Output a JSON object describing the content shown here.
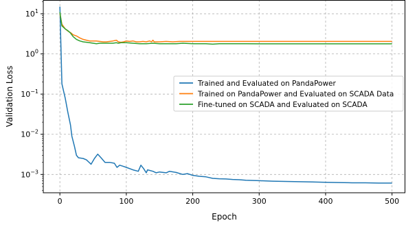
{
  "chart_data": {
    "type": "line",
    "xlabel": "Epoch",
    "ylabel": "Validation Loss",
    "xlim": [
      -25,
      520
    ],
    "ylim": [
      0.00035,
      22
    ],
    "yscale": "log",
    "grid": true,
    "legend_position": "center-right",
    "x_ticks": [
      0,
      100,
      200,
      300,
      400,
      500
    ],
    "x_tick_labels": [
      "0",
      "100",
      "200",
      "300",
      "400",
      "500"
    ],
    "y_ticks": [
      10,
      1,
      0.1,
      0.01,
      0.001
    ],
    "y_tick_labels": [
      {
        "base": "10",
        "exp": "1"
      },
      {
        "base": "10",
        "exp": "0"
      },
      {
        "base": "10",
        "exp": "−1"
      },
      {
        "base": "10",
        "exp": "−2"
      },
      {
        "base": "10",
        "exp": "−3"
      }
    ],
    "series": [
      {
        "name": "Trained and Evaluated on PandaPower",
        "color": "#1f77b4",
        "points": [
          [
            0,
            15
          ],
          [
            3,
            0.18
          ],
          [
            8,
            0.08
          ],
          [
            12,
            0.035
          ],
          [
            16,
            0.017
          ],
          [
            18,
            0.009
          ],
          [
            22,
            0.005
          ],
          [
            25,
            0.003
          ],
          [
            28,
            0.0026
          ],
          [
            35,
            0.0025
          ],
          [
            40,
            0.0023
          ],
          [
            47,
            0.0018
          ],
          [
            52,
            0.0025
          ],
          [
            57,
            0.0032
          ],
          [
            62,
            0.0026
          ],
          [
            68,
            0.002
          ],
          [
            75,
            0.002
          ],
          [
            82,
            0.0019
          ],
          [
            86,
            0.0015
          ],
          [
            90,
            0.0017
          ],
          [
            95,
            0.0016
          ],
          [
            100,
            0.0015
          ],
          [
            110,
            0.0013
          ],
          [
            118,
            0.0012
          ],
          [
            122,
            0.0017
          ],
          [
            126,
            0.0014
          ],
          [
            130,
            0.0011
          ],
          [
            132,
            0.0013
          ],
          [
            140,
            0.0012
          ],
          [
            145,
            0.0011
          ],
          [
            150,
            0.00115
          ],
          [
            160,
            0.0011
          ],
          [
            165,
            0.0012
          ],
          [
            175,
            0.00112
          ],
          [
            185,
            0.001
          ],
          [
            192,
            0.00105
          ],
          [
            200,
            0.00095
          ],
          [
            210,
            0.0009
          ],
          [
            220,
            0.00087
          ],
          [
            230,
            0.0008
          ],
          [
            240,
            0.00078
          ],
          [
            250,
            0.00077
          ],
          [
            260,
            0.00075
          ],
          [
            270,
            0.00074
          ],
          [
            280,
            0.00072
          ],
          [
            300,
            0.0007
          ],
          [
            320,
            0.00068
          ],
          [
            340,
            0.00067
          ],
          [
            360,
            0.00066
          ],
          [
            380,
            0.00065
          ],
          [
            400,
            0.00064
          ],
          [
            420,
            0.00063
          ],
          [
            440,
            0.00062
          ],
          [
            460,
            0.00062
          ],
          [
            480,
            0.00061
          ],
          [
            500,
            0.00061
          ]
        ]
      },
      {
        "name": "Trained on PandaPower and Evaluated on SCADA Data",
        "color": "#ff7f0e",
        "points": [
          [
            0,
            10
          ],
          [
            3,
            5.5
          ],
          [
            8,
            4.2
          ],
          [
            12,
            3.7
          ],
          [
            16,
            3.4
          ],
          [
            20,
            3.0
          ],
          [
            25,
            2.8
          ],
          [
            30,
            2.5
          ],
          [
            35,
            2.3
          ],
          [
            40,
            2.2
          ],
          [
            45,
            2.1
          ],
          [
            50,
            2.1
          ],
          [
            55,
            2.1
          ],
          [
            60,
            2.05
          ],
          [
            65,
            2.0
          ],
          [
            70,
            2.0
          ],
          [
            75,
            2.05
          ],
          [
            80,
            2.1
          ],
          [
            85,
            2.2
          ],
          [
            88,
            2.0
          ],
          [
            92,
            1.95
          ],
          [
            96,
            2.0
          ],
          [
            100,
            2.1
          ],
          [
            105,
            2.05
          ],
          [
            110,
            2.1
          ],
          [
            115,
            2.0
          ],
          [
            120,
            2.0
          ],
          [
            125,
            2.05
          ],
          [
            130,
            2.0
          ],
          [
            135,
            2.1
          ],
          [
            138,
            2.0
          ],
          [
            140,
            2.2
          ],
          [
            142,
            2.0
          ],
          [
            150,
            2.0
          ],
          [
            160,
            2.05
          ],
          [
            170,
            2.0
          ],
          [
            180,
            2.05
          ],
          [
            200,
            2.05
          ],
          [
            230,
            2.05
          ],
          [
            260,
            2.05
          ],
          [
            300,
            2.05
          ],
          [
            340,
            2.05
          ],
          [
            380,
            2.05
          ],
          [
            420,
            2.05
          ],
          [
            460,
            2.05
          ],
          [
            500,
            2.05
          ]
        ]
      },
      {
        "name": "Fine-tuned on SCADA and Evaluated on SCADA",
        "color": "#2ca02c",
        "points": [
          [
            0,
            11
          ],
          [
            3,
            5.0
          ],
          [
            8,
            4.2
          ],
          [
            12,
            3.8
          ],
          [
            16,
            3.3
          ],
          [
            20,
            2.7
          ],
          [
            25,
            2.3
          ],
          [
            30,
            2.1
          ],
          [
            35,
            2.0
          ],
          [
            40,
            1.95
          ],
          [
            45,
            1.9
          ],
          [
            50,
            1.85
          ],
          [
            55,
            1.8
          ],
          [
            60,
            1.85
          ],
          [
            70,
            1.85
          ],
          [
            80,
            1.85
          ],
          [
            85,
            1.9
          ],
          [
            88,
            1.85
          ],
          [
            92,
            1.9
          ],
          [
            100,
            1.9
          ],
          [
            110,
            1.85
          ],
          [
            120,
            1.8
          ],
          [
            130,
            1.8
          ],
          [
            140,
            1.85
          ],
          [
            150,
            1.8
          ],
          [
            160,
            1.8
          ],
          [
            175,
            1.8
          ],
          [
            185,
            1.85
          ],
          [
            200,
            1.8
          ],
          [
            220,
            1.8
          ],
          [
            230,
            1.75
          ],
          [
            240,
            1.8
          ],
          [
            260,
            1.8
          ],
          [
            280,
            1.8
          ],
          [
            300,
            1.78
          ],
          [
            340,
            1.78
          ],
          [
            380,
            1.78
          ],
          [
            420,
            1.78
          ],
          [
            460,
            1.78
          ],
          [
            500,
            1.78
          ]
        ]
      }
    ]
  }
}
